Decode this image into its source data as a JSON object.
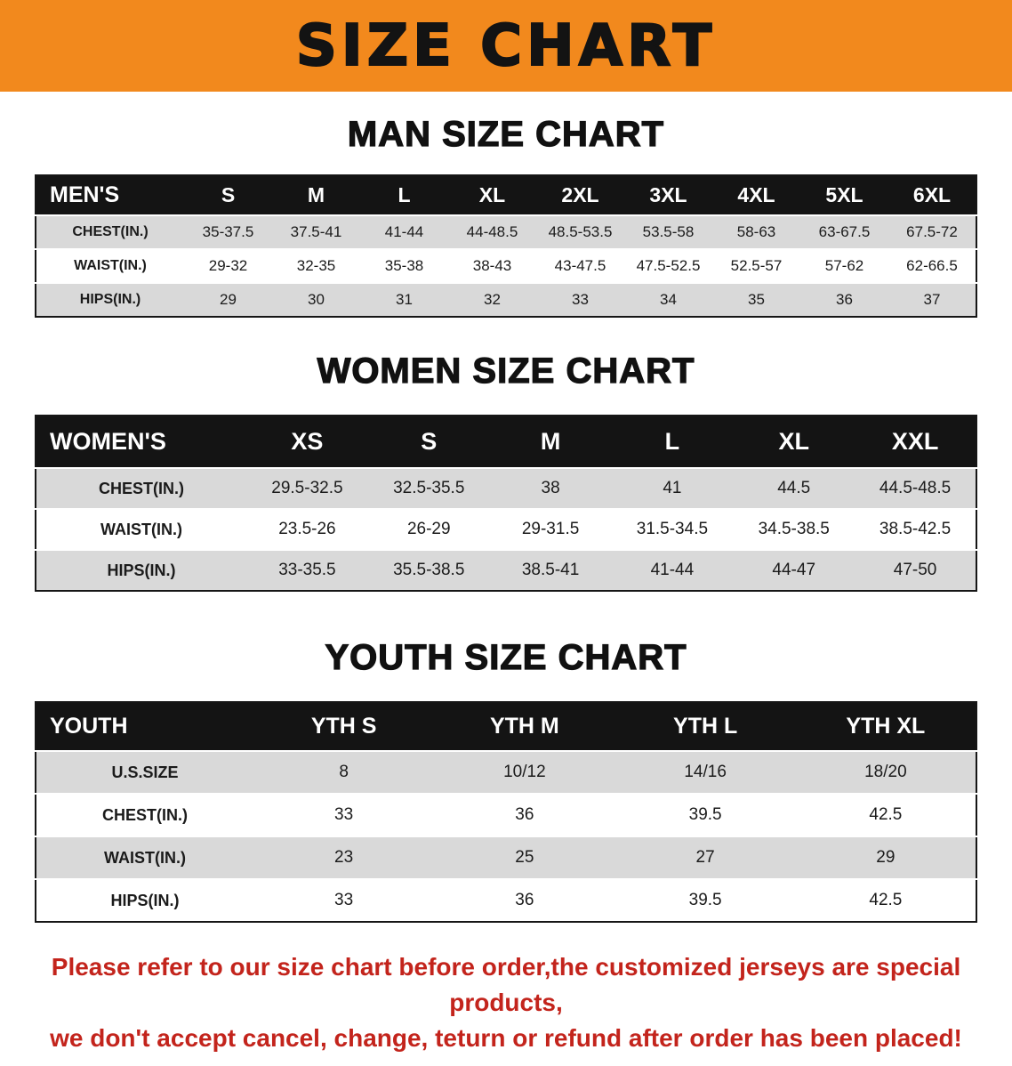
{
  "banner": {
    "title": "SIZE CHART",
    "bg_color": "#f2891d"
  },
  "colors": {
    "banner_orange": "#f2891d",
    "table_header_black": "#141414",
    "row_gray": "#d9d9d9",
    "disclaimer_red": "#c3241c"
  },
  "sections": [
    {
      "heading": "MAN SIZE CHART",
      "table": {
        "header": [
          "MEN'S",
          "S",
          "M",
          "L",
          "XL",
          "2XL",
          "3XL",
          "4XL",
          "5XL",
          "6XL"
        ],
        "rows": [
          [
            "CHEST(IN.)",
            "35-37.5",
            "37.5-41",
            "41-44",
            "44-48.5",
            "48.5-53.5",
            "53.5-58",
            "58-63",
            "63-67.5",
            "67.5-72"
          ],
          [
            "WAIST(IN.)",
            "29-32",
            "32-35",
            "35-38",
            "38-43",
            "43-47.5",
            "47.5-52.5",
            "52.5-57",
            "57-62",
            "62-66.5"
          ],
          [
            "HIPS(IN.)",
            "29",
            "30",
            "31",
            "32",
            "33",
            "34",
            "35",
            "36",
            "37"
          ]
        ]
      }
    },
    {
      "heading": "WOMEN SIZE CHART",
      "table": {
        "header": [
          "WOMEN'S",
          "XS",
          "S",
          "M",
          "L",
          "XL",
          "XXL"
        ],
        "rows": [
          [
            "CHEST(IN.)",
            "29.5-32.5",
            "32.5-35.5",
            "38",
            "41",
            "44.5",
            "44.5-48.5"
          ],
          [
            "WAIST(IN.)",
            "23.5-26",
            "26-29",
            "29-31.5",
            "31.5-34.5",
            "34.5-38.5",
            "38.5-42.5"
          ],
          [
            "HIPS(IN.)",
            "33-35.5",
            "35.5-38.5",
            "38.5-41",
            "41-44",
            "44-47",
            "47-50"
          ]
        ]
      }
    },
    {
      "heading": "YOUTH SIZE CHART",
      "table": {
        "header": [
          "YOUTH",
          "YTH S",
          "YTH M",
          "YTH L",
          "YTH XL"
        ],
        "rows": [
          [
            "U.S.SIZE",
            "8",
            "10/12",
            "14/16",
            "18/20"
          ],
          [
            "CHEST(IN.)",
            "33",
            "36",
            "39.5",
            "42.5"
          ],
          [
            "WAIST(IN.)",
            "23",
            "25",
            "27",
            "29"
          ],
          [
            "HIPS(IN.)",
            "33",
            "36",
            "39.5",
            "42.5"
          ]
        ]
      }
    }
  ],
  "disclaimer": {
    "line1": "Please refer to our size chart before order,the customized jerseys are special products,",
    "line2": "we don't accept cancel, change, teturn or refund after order has been placed!",
    "color": "#c3241c"
  }
}
